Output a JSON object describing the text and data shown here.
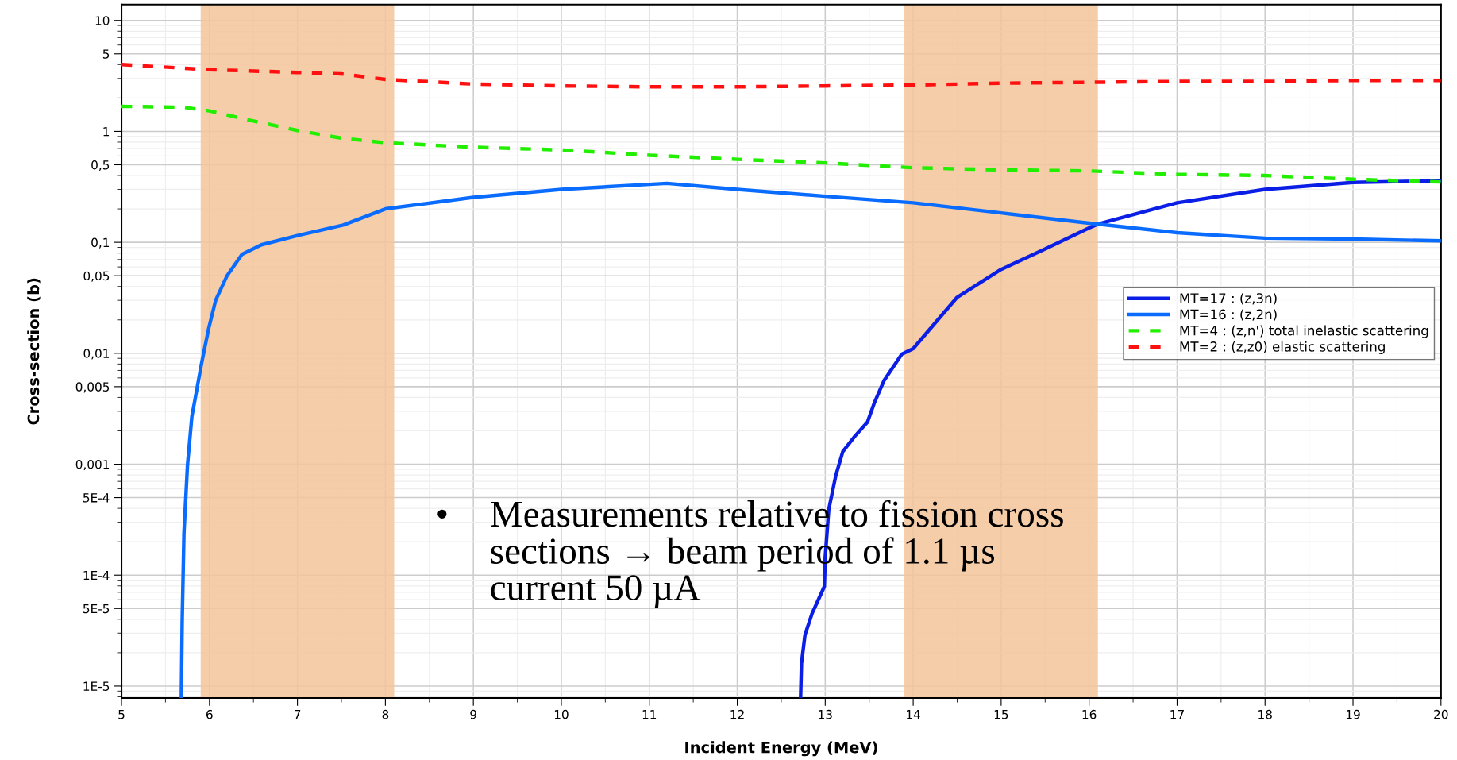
{
  "chart_data": {
    "type": "line",
    "xlabel": "Incident Energy (MeV)",
    "ylabel": "Cross-section (b)",
    "log": "y",
    "grid": true,
    "legend": "center right",
    "marker": "none",
    "xlim": [
      5,
      20
    ],
    "xticks": [
      5,
      6,
      7,
      8,
      9,
      10,
      11,
      12,
      13,
      14,
      15,
      16,
      17,
      18,
      19,
      20
    ],
    "ylim": [
      7.8e-06,
      13.9
    ],
    "yticks": [
      {
        "value": 10,
        "label": "10"
      },
      {
        "value": 5,
        "label": "5"
      },
      {
        "value": 1,
        "label": "1"
      },
      {
        "value": 0.5,
        "label": "0,5"
      },
      {
        "value": 0.1,
        "label": "0,1"
      },
      {
        "value": 0.05,
        "label": "0,05"
      },
      {
        "value": 0.01,
        "label": "0,01"
      },
      {
        "value": 0.005,
        "label": "0,005"
      },
      {
        "value": 0.001,
        "label": "0,001"
      },
      {
        "value": 0.0005,
        "label": "5E-4"
      },
      {
        "value": 0.0001,
        "label": "1E-4"
      },
      {
        "value": 5e-05,
        "label": "5E-5"
      },
      {
        "value": 1e-05,
        "label": "1E-5"
      }
    ],
    "series": [
      {
        "name": "MT=17 : (z,3n)",
        "color": "#0a1ee6",
        "line_style": "solid",
        "x": [
          12.72,
          12.73,
          12.77,
          12.85,
          12.93,
          12.99,
          13.0,
          13.04,
          13.12,
          13.2,
          13.34,
          13.48,
          13.56,
          13.67,
          13.87,
          14.0,
          14.5,
          15.0,
          15.5,
          16.0,
          16.1,
          17.0,
          18.0,
          19.0,
          20.0
        ],
        "values": [
          7.9e-06,
          1.6e-05,
          2.9e-05,
          4.5e-05,
          6.2e-05,
          7.9e-05,
          0.000145,
          0.00039,
          0.00079,
          0.0013,
          0.0018,
          0.0024,
          0.0036,
          0.0057,
          0.0098,
          0.011,
          0.032,
          0.057,
          0.087,
          0.135,
          0.146,
          0.227,
          0.3,
          0.346,
          0.36
        ]
      },
      {
        "name": "MT=16 : (z,2n)",
        "color": "#0a6cff",
        "line_style": "solid",
        "x": [
          5.68,
          5.69,
          5.71,
          5.75,
          5.8,
          5.84,
          5.91,
          5.99,
          6.07,
          6.2,
          6.37,
          6.59,
          7.0,
          7.52,
          8.0,
          9.0,
          10.0,
          11.0,
          11.2,
          12.0,
          13.0,
          14.0,
          15.0,
          16.0,
          17.0,
          18.0,
          19.0,
          20.0
        ],
        "values": [
          7.9e-06,
          3.9e-05,
          0.00024,
          0.00098,
          0.0027,
          0.004,
          0.0081,
          0.0166,
          0.03,
          0.05,
          0.078,
          0.095,
          0.115,
          0.143,
          0.2,
          0.254,
          0.3,
          0.333,
          0.34,
          0.3,
          0.26,
          0.227,
          0.184,
          0.149,
          0.122,
          0.109,
          0.107,
          0.103
        ]
      },
      {
        "name": "MT=4 : (z,n') total inelastic scattering",
        "color": "#22ee00",
        "line_style": "dashed",
        "x": [
          5,
          5.7,
          6,
          6.5,
          7,
          7.5,
          8,
          9,
          10,
          11,
          12,
          13,
          14,
          15,
          16,
          17,
          18,
          19,
          20
        ],
        "values": [
          1.68,
          1.65,
          1.53,
          1.24,
          1.02,
          0.87,
          0.79,
          0.72,
          0.68,
          0.61,
          0.56,
          0.52,
          0.47,
          0.45,
          0.44,
          0.41,
          0.4,
          0.37,
          0.35
        ]
      },
      {
        "name": "MT=2 : (z,z0) elastic scattering",
        "color": "#ff1010",
        "line_style": "dashed",
        "x": [
          5,
          6,
          7,
          7.5,
          8,
          9,
          10,
          11,
          12,
          13,
          14,
          15,
          16,
          17,
          18,
          19,
          20
        ],
        "values": [
          4.0,
          3.6,
          3.4,
          3.3,
          2.94,
          2.67,
          2.57,
          2.52,
          2.52,
          2.57,
          2.62,
          2.72,
          2.77,
          2.82,
          2.82,
          2.88,
          2.88
        ]
      }
    ],
    "bands": [
      {
        "axis": "x",
        "from": 5.9,
        "to": 8.1,
        "color": "#f5c49a"
      },
      {
        "axis": "x",
        "from": 13.9,
        "to": 16.1,
        "color": "#f5c49a"
      }
    ],
    "annotations": [
      "•",
      "Measurements relative to fission cross\nsections → beam period of 1.1 µs\ncurrent 50 µA"
    ]
  }
}
